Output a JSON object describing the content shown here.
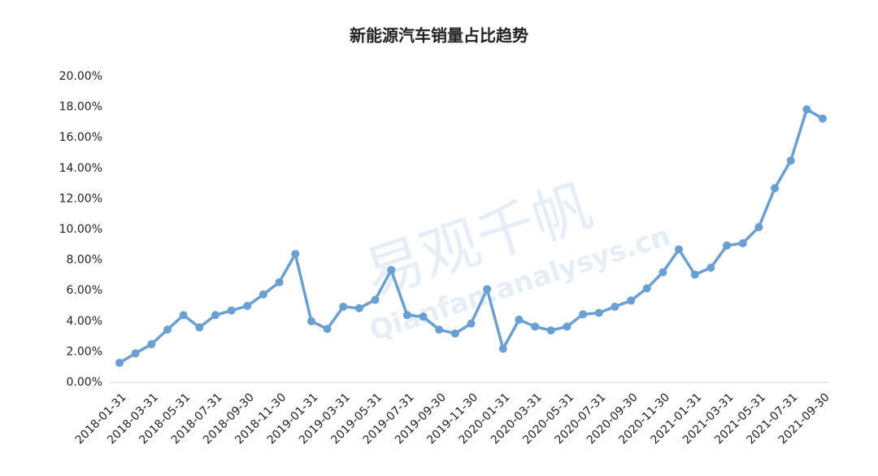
{
  "chart_data": {
    "type": "line",
    "title": "新能源汽车销量占比趋势",
    "watermark": [
      "易观千帆",
      "Qianfan.analysys.cn"
    ],
    "categories": [
      "2018-01-31",
      null,
      "2018-03-31",
      null,
      "2018-05-31",
      null,
      "2018-07-31",
      null,
      "2018-09-30",
      null,
      "2018-11-30",
      null,
      "2019-01-31",
      null,
      "2019-03-31",
      null,
      "2019-05-31",
      null,
      "2019-07-31",
      null,
      "2019-09-30",
      null,
      "2019-11-30",
      null,
      "2020-01-31",
      null,
      "2020-03-31",
      null,
      "2020-05-31",
      null,
      "2020-07-31",
      null,
      "2020-09-30",
      null,
      "2020-11-30",
      null,
      "2021-01-31",
      null,
      "2021-03-31",
      null,
      "2021-05-31",
      null,
      "2021-07-31",
      null,
      "2021-09-30"
    ],
    "values": [
      1.28,
      1.9,
      2.5,
      3.45,
      4.4,
      3.6,
      4.4,
      4.7,
      5.0,
      5.75,
      6.55,
      8.4,
      4.0,
      3.5,
      4.95,
      4.85,
      5.4,
      7.35,
      4.4,
      4.3,
      3.45,
      3.2,
      3.85,
      6.1,
      2.2,
      4.1,
      3.65,
      3.4,
      3.65,
      4.45,
      4.55,
      4.95,
      5.35,
      6.15,
      7.2,
      8.7,
      7.05,
      7.5,
      8.95,
      9.1,
      10.15,
      12.7,
      14.5,
      17.85,
      17.25
    ],
    "color": "#6a9fd3",
    "ylim": [
      0,
      20
    ],
    "yticks": [
      {
        "value": 0,
        "label": "0.00%"
      },
      {
        "value": 2,
        "label": "2.00%"
      },
      {
        "value": 4,
        "label": "4.00%"
      },
      {
        "value": 6,
        "label": "6.00%"
      },
      {
        "value": 8,
        "label": "8.00%"
      },
      {
        "value": 10,
        "label": "10.00%"
      },
      {
        "value": 12,
        "label": "12.00%"
      },
      {
        "value": 14,
        "label": "14.00%"
      },
      {
        "value": 16,
        "label": "16.00%"
      },
      {
        "value": 18,
        "label": "18.00%"
      },
      {
        "value": 20,
        "label": "20.00%"
      }
    ],
    "grid": false
  }
}
